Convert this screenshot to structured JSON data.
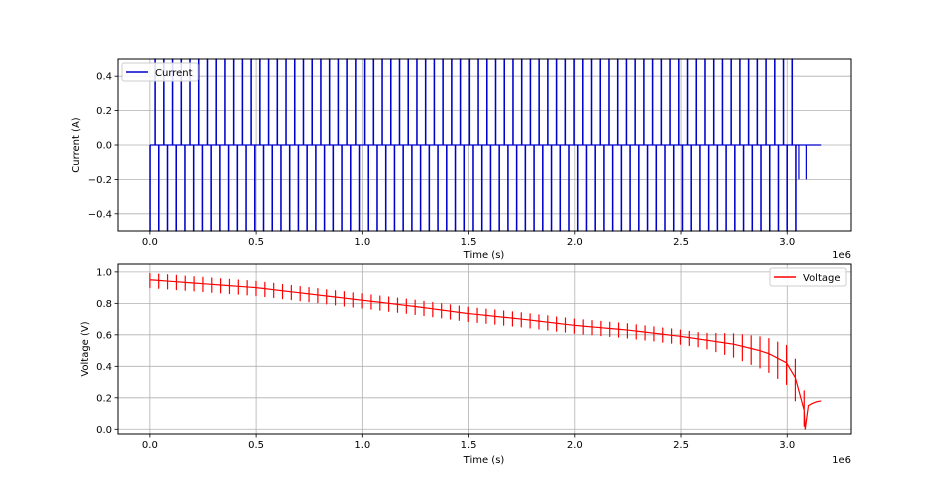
{
  "chart_data": [
    {
      "type": "line",
      "title": "",
      "xlabel": "Time (s)",
      "ylabel": "Current (A)",
      "xlim": [
        -150000,
        3300000
      ],
      "ylim": [
        -0.5,
        0.5
      ],
      "x_ticks": [
        0.0,
        0.5,
        1.0,
        1.5,
        2.0,
        2.5,
        3.0
      ],
      "x_tick_labels": [
        "0.0",
        "0.5",
        "1.0",
        "1.5",
        "2.0",
        "2.5",
        "3.0"
      ],
      "x_offset_label": "1e6",
      "y_ticks": [
        -0.4,
        -0.2,
        0.0,
        0.2,
        0.4
      ],
      "y_tick_labels": [
        "−0.4",
        "−0.2",
        "0.0",
        "0.2",
        "0.4"
      ],
      "grid": true,
      "legend_position": "upper-left",
      "series": [
        {
          "name": "Current",
          "color": "#0000cc",
          "pattern": "pulse-train",
          "pulse_count": 75,
          "pulse_start": 0,
          "pulse_end": 3040000,
          "charge_current": 0.5,
          "discharge_current": -0.5,
          "rest_current": 0.0,
          "final_discharge_current": -0.2,
          "final_discharge_time": [
            3055000,
            3090000
          ],
          "end_time": 3160000
        }
      ]
    },
    {
      "type": "line",
      "title": "",
      "xlabel": "Time (s)",
      "ylabel": "Voltage (V)",
      "xlim": [
        -150000,
        3300000
      ],
      "ylim": [
        -0.03,
        1.05
      ],
      "x_ticks": [
        0.0,
        0.5,
        1.0,
        1.5,
        2.0,
        2.5,
        3.0
      ],
      "x_tick_labels": [
        "0.0",
        "0.5",
        "1.0",
        "1.5",
        "2.0",
        "2.5",
        "3.0"
      ],
      "x_offset_label": "1e6",
      "y_ticks": [
        0.0,
        0.2,
        0.4,
        0.6,
        0.8,
        1.0
      ],
      "y_tick_labels": [
        "0.0",
        "0.2",
        "0.4",
        "0.6",
        "0.8",
        "1.0"
      ],
      "grid": true,
      "legend_position": "upper-right",
      "series": [
        {
          "name": "Voltage",
          "color": "#ff0000",
          "envelope": {
            "x": [
              0,
              250000,
              500000,
              750000,
              1000000,
              1250000,
              1500000,
              1750000,
              2000000,
              2250000,
              2500000,
              2750000,
              2900000,
              3000000,
              3050000,
              3080000
            ],
            "y": [
              0.95,
              0.925,
              0.9,
              0.86,
              0.82,
              0.78,
              0.735,
              0.7,
              0.66,
              0.63,
              0.59,
              0.54,
              0.49,
              0.42,
              0.3,
              0.12
            ]
          },
          "spike_up": 0.04,
          "spike_down": 0.05,
          "tail": {
            "x": [
              3085000,
              3100000,
              3120000,
              3140000,
              3160000
            ],
            "y": [
              0.0,
              0.15,
              0.165,
              0.175,
              0.18
            ]
          }
        }
      ]
    }
  ]
}
